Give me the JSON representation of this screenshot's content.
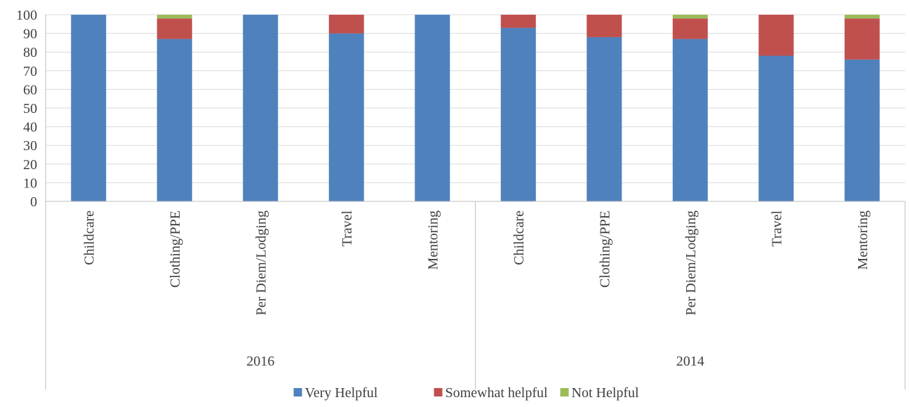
{
  "chart_data": {
    "type": "bar",
    "stacked": true,
    "groups": [
      {
        "label": "2016",
        "categories": [
          "Childcare",
          "Clothing/PPE",
          "Per Diem/Lodging",
          "Travel",
          "Mentoring"
        ]
      },
      {
        "label": "2014",
        "categories": [
          "Childcare",
          "Clothing/PPE",
          "Per Diem/Lodging",
          "Travel",
          "Mentoring"
        ]
      }
    ],
    "series": [
      {
        "name": "Very Helpful",
        "color": "#4F81BD",
        "values": [
          100,
          87,
          100,
          90,
          100,
          93,
          88,
          87,
          78,
          76
        ]
      },
      {
        "name": "Somewhat helpful",
        "color": "#C0504D",
        "values": [
          0,
          11,
          0,
          10,
          0,
          7,
          12,
          11,
          22,
          22
        ]
      },
      {
        "name": "Not Helpful",
        "color": "#9BBB59",
        "values": [
          0,
          2,
          0,
          0,
          0,
          0,
          0,
          2,
          0,
          2
        ]
      }
    ],
    "yticks": [
      0,
      10,
      20,
      30,
      40,
      50,
      60,
      70,
      80,
      90,
      100
    ],
    "ylim": [
      0,
      100
    ],
    "grid": true,
    "legend_position": "bottom"
  }
}
